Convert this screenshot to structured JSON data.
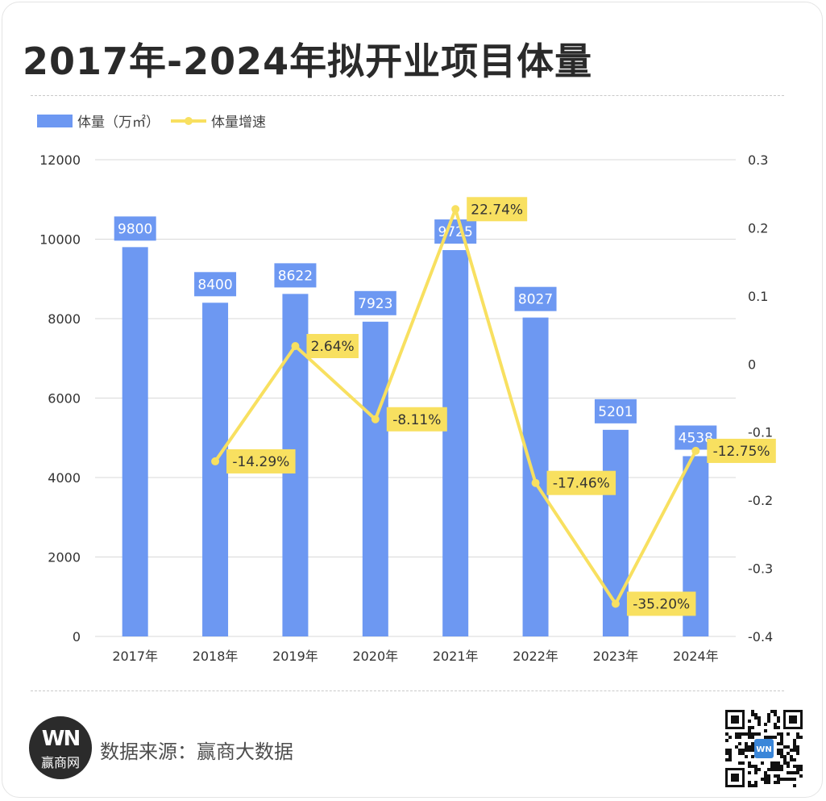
{
  "title": "2017年-2024年拟开业项目体量",
  "footer": {
    "source": "数据来源：赢商大数据",
    "logo_mark": "WN",
    "logo_name": "赢商网"
  },
  "colors": {
    "bar": "#6d98f2",
    "line": "#f8e060",
    "label_bg_bar": "#6d98f2",
    "label_bg_line": "#f8e060"
  },
  "icons": [
    "winshang-logo-icon",
    "qr-code-icon"
  ],
  "chart_data": {
    "type": "bar",
    "categories": [
      "2017年",
      "2018年",
      "2019年",
      "2020年",
      "2021年",
      "2022年",
      "2023年",
      "2024年"
    ],
    "series": [
      {
        "name": "体量（万㎡）",
        "kind": "bar",
        "axis": "left",
        "values": [
          9800,
          8400,
          8622,
          7923,
          9725,
          8027,
          5201,
          4538
        ],
        "labels": [
          "9800",
          "8400",
          "8622",
          "7923",
          "9725",
          "8027",
          "5201",
          "4538"
        ]
      },
      {
        "name": "体量增速",
        "kind": "line",
        "axis": "right",
        "values": [
          null,
          -0.1429,
          0.0264,
          -0.0811,
          0.2274,
          -0.1746,
          -0.352,
          -0.1275
        ],
        "labels": [
          "",
          "-14.29%",
          "2.64%",
          "-8.11%",
          "22.74%",
          "-17.46%",
          "-35.20%",
          "-12.75%"
        ]
      }
    ],
    "y_left": {
      "min": 0,
      "max": 12000,
      "ticks": [
        "0",
        "2000",
        "4000",
        "6000",
        "8000",
        "10000",
        "12000"
      ]
    },
    "y_right": {
      "min": -0.4,
      "max": 0.3,
      "ticks": [
        "-0.4",
        "-0.3",
        "-0.2",
        "-0.1",
        "0",
        "0.1",
        "0.2",
        "0.3"
      ]
    },
    "grid": true,
    "legend": "top-left"
  }
}
